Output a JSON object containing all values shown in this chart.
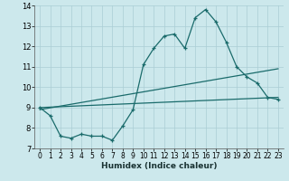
{
  "xlabel": "Humidex (Indice chaleur)",
  "xlim": [
    -0.5,
    23.5
  ],
  "ylim": [
    7,
    14
  ],
  "xticks": [
    0,
    1,
    2,
    3,
    4,
    5,
    6,
    7,
    8,
    9,
    10,
    11,
    12,
    13,
    14,
    15,
    16,
    17,
    18,
    19,
    20,
    21,
    22,
    23
  ],
  "yticks": [
    7,
    8,
    9,
    10,
    11,
    12,
    13,
    14
  ],
  "bg_color": "#cce8ec",
  "line_color": "#1a6b6b",
  "grid_color": "#aacdd4",
  "main_series_x": [
    0,
    1,
    2,
    3,
    4,
    5,
    6,
    7,
    8,
    9,
    10,
    11,
    12,
    13,
    14,
    15,
    16,
    17,
    18,
    19,
    20,
    21,
    22,
    23
  ],
  "main_series_y": [
    9.0,
    8.6,
    7.6,
    7.5,
    7.7,
    7.6,
    7.6,
    7.4,
    8.1,
    8.9,
    11.1,
    11.9,
    12.5,
    12.6,
    11.9,
    13.4,
    13.8,
    13.2,
    12.2,
    11.0,
    10.5,
    10.2,
    9.5,
    9.4
  ],
  "trend1_x": [
    0,
    23
  ],
  "trend1_y": [
    9.0,
    9.5
  ],
  "trend2_x": [
    0,
    23
  ],
  "trend2_y": [
    8.9,
    10.9
  ]
}
